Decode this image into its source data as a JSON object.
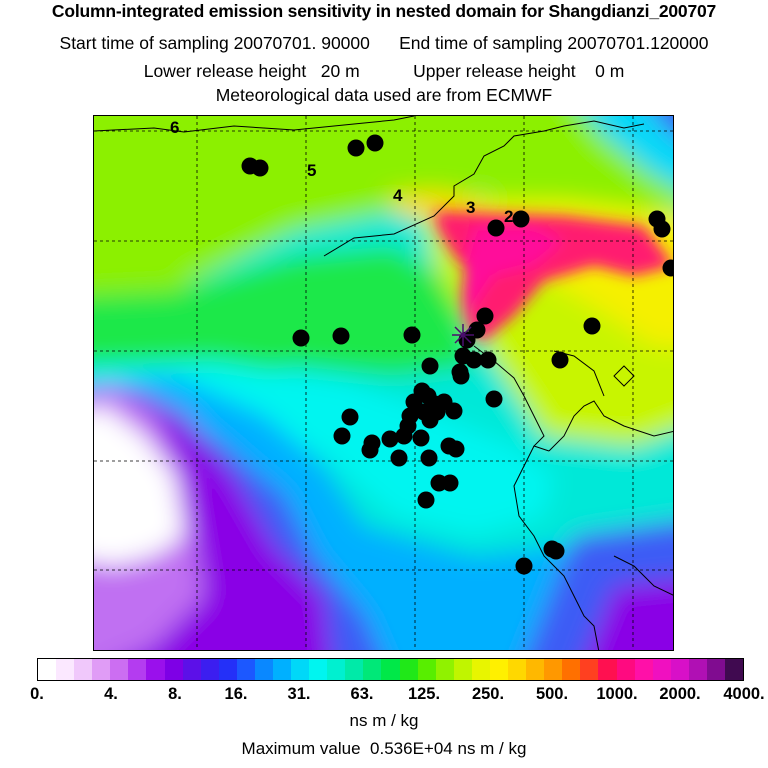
{
  "header": {
    "title": "Column-integrated emission sensitivity in nested domain for Shangdianzi_200707",
    "start_label": "Start time of sampling",
    "start_value": "20070701. 90000",
    "end_label": "End time of sampling",
    "end_value": "20070701.120000",
    "lower_label": "Lower release height",
    "lower_value": "20 m",
    "upper_label": "Upper release height",
    "upper_value": "0 m",
    "met_text": "Meteorological data used are from ECMWF"
  },
  "map": {
    "day_labels": [
      "6",
      "5",
      "4",
      "3",
      "2"
    ],
    "receptor_marker": "station-star",
    "field_colors": {
      "white": "#ffffff",
      "violet": "#8a00e6",
      "purple": "#b855f2",
      "blue": "#3c5cf5",
      "lightblue": "#00a8ff",
      "cyan": "#00f5f0",
      "teal": "#00e8b0",
      "green": "#1ee84a",
      "lightgreen": "#8cf000",
      "yellowgreen": "#c8f500",
      "yellow": "#f5f000",
      "orange": "#ffb000",
      "pink": "#ff1a70",
      "magenta": "#ff0a9a"
    },
    "marker_color": "#000000"
  },
  "colorbar": {
    "colors": [
      "#ffffff",
      "#fbe8ff",
      "#f0c8fb",
      "#e09cf6",
      "#cc6ef2",
      "#b43cf0",
      "#9a10ec",
      "#7e00e6",
      "#5c10e8",
      "#3c1ef0",
      "#2430f8",
      "#1c58ff",
      "#0a88ff",
      "#00b0ff",
      "#00d8f8",
      "#00f5f0",
      "#00f0d0",
      "#00eaa8",
      "#00e878",
      "#00e848",
      "#20e818",
      "#58ee00",
      "#90f200",
      "#c0f500",
      "#e8f500",
      "#fff000",
      "#ffd800",
      "#ffb800",
      "#ff9800",
      "#ff7000",
      "#ff4020",
      "#ff1050",
      "#ff0a80",
      "#ff10a8",
      "#f010c0",
      "#d810c8",
      "#b010b4",
      "#800c90",
      "#400a50"
    ],
    "tick_labels": [
      "0.",
      "4.",
      "8.",
      "16.",
      "31.",
      "63.",
      "125.",
      "250.",
      "500.",
      "1000.",
      "2000.",
      "4000."
    ],
    "units": "ns m / kg"
  },
  "footer": {
    "max_label": "Maximum value",
    "max_value": "0.536E+04",
    "max_units": "ns m / kg"
  }
}
